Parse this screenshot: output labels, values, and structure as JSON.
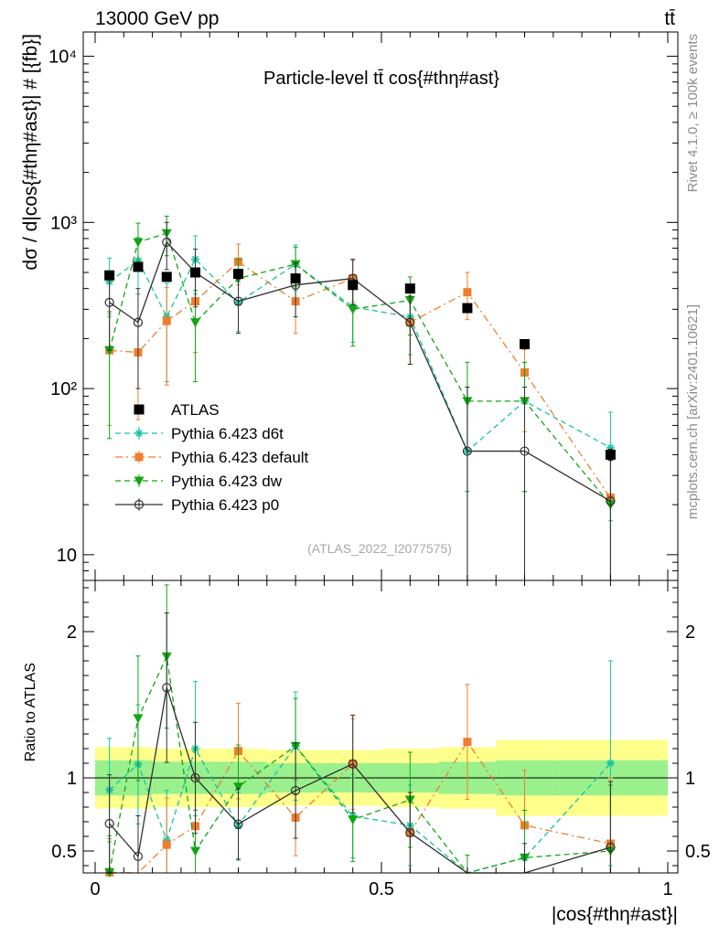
{
  "header": {
    "energy_label": "13000 GeV pp",
    "process_label": "tt̄"
  },
  "side_labels": {
    "rivet": "Rivet 4.1.0, ≥ 100k events",
    "mcplots": "mcplots.cern.ch [arXiv:2401.10621]"
  },
  "chart_data": {
    "type": "scatter",
    "title": "Particle-level tt̄ cos{#thη#ast}",
    "analysis_id": "(ATLAS_2022_I2077575)",
    "xlabel": "|cos{#thη#ast}|",
    "ylabel": "dσ / d|cos{#thη#ast}| # [{fb}]",
    "ratio_ylabel": "Ratio to ATLAS",
    "xlim": [
      0,
      1
    ],
    "ylim": [
      7,
      14000
    ],
    "yscale": "log",
    "ratio_ylim": [
      0.35,
      2.35
    ],
    "x_ticks": [
      {
        "value": 0,
        "label": "0"
      },
      {
        "value": 0.5,
        "label": "0.5"
      },
      {
        "value": 1,
        "label": "1"
      }
    ],
    "y_ticks": [
      {
        "value": 10,
        "label": "10"
      },
      {
        "value": 100,
        "label": "10²"
      },
      {
        "value": 1000,
        "label": "10³"
      },
      {
        "value": 10000,
        "label": "10⁴"
      }
    ],
    "ratio_ticks": [
      {
        "value": 0.5,
        "label": "0.5"
      },
      {
        "value": 1,
        "label": "1"
      },
      {
        "value": 2,
        "label": "2"
      }
    ],
    "x": [
      0.025,
      0.075,
      0.125,
      0.175,
      0.25,
      0.35,
      0.45,
      0.55,
      0.65,
      0.75,
      0.9
    ],
    "bin_edges": [
      0,
      0.05,
      0.1,
      0.15,
      0.2,
      0.3,
      0.4,
      0.5,
      0.6,
      0.7,
      0.8,
      1.0
    ],
    "data": {
      "name": "ATLAS",
      "values": [
        480,
        540,
        470,
        500,
        490,
        460,
        420,
        400,
        305,
        185,
        40
      ],
      "errors": [
        25,
        25,
        25,
        25,
        22,
        22,
        20,
        20,
        18,
        12,
        3
      ],
      "band_green": [
        0.12,
        0.12,
        0.11,
        0.11,
        0.11,
        0.1,
        0.1,
        0.1,
        0.11,
        0.12,
        0.12
      ],
      "band_yellow": [
        0.21,
        0.21,
        0.2,
        0.2,
        0.2,
        0.19,
        0.19,
        0.2,
        0.21,
        0.26,
        0.26
      ]
    },
    "series": [
      {
        "name": "Pythia 6.423 d6t",
        "color": "#17c3a3",
        "style": "dashed",
        "marker": "star",
        "values": [
          440,
          590,
          270,
          600,
          330,
          560,
          310,
          270,
          42,
          84,
          44
        ],
        "errors": [
          170,
          220,
          160,
          230,
          110,
          170,
          120,
          110,
          60,
          60,
          28
        ]
      },
      {
        "name": "Pythia 6.423 default",
        "color": "#f07e2e",
        "style": "dashdot",
        "marker": "square",
        "values": [
          170,
          165,
          255,
          335,
          580,
          335,
          460,
          250,
          380,
          125,
          22
        ],
        "errors": [
          110,
          100,
          150,
          170,
          160,
          120,
          130,
          110,
          120,
          70,
          18
        ]
      },
      {
        "name": "Pythia 6.423 dw",
        "color": "#12a512",
        "style": "dashed",
        "marker": "triangle",
        "values": [
          170,
          760,
          860,
          250,
          460,
          560,
          300,
          340,
          84,
          84,
          20
        ],
        "errors": [
          120,
          230,
          230,
          140,
          140,
          150,
          120,
          130,
          60,
          60,
          18
        ]
      },
      {
        "name": "Pythia 6.423 p0",
        "color": "#303030",
        "style": "solid",
        "marker": "circle",
        "values": [
          330,
          250,
          760,
          500,
          335,
          420,
          460,
          250,
          42,
          42,
          21
        ],
        "errors": [
          160,
          150,
          240,
          190,
          120,
          150,
          140,
          110,
          60,
          60,
          18
        ]
      }
    ]
  }
}
